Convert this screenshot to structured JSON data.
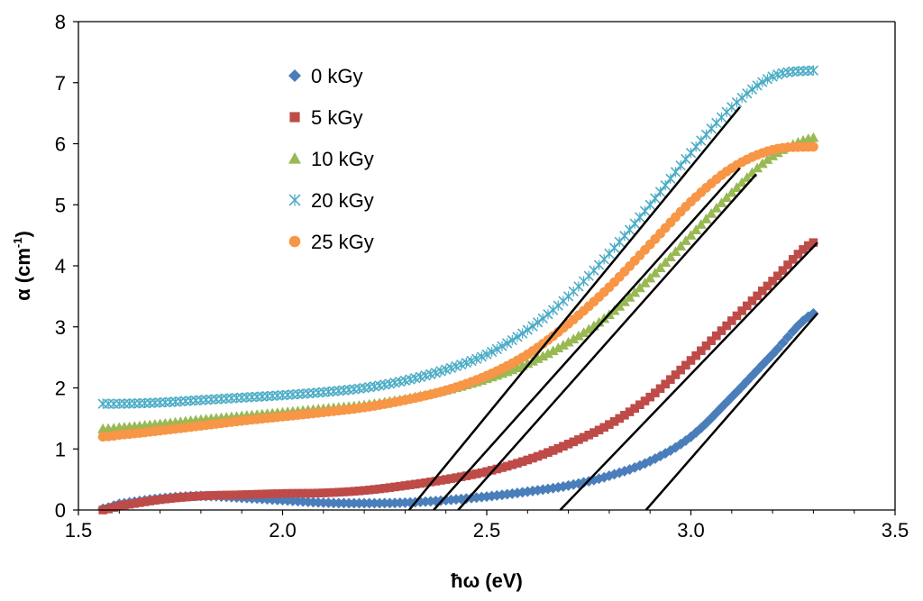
{
  "chart_data": {
    "type": "scatter",
    "title": "",
    "xlabel": "ħω (eV)",
    "ylabel": {
      "base": "α (cm",
      "sup": "-1",
      "tail": ")"
    },
    "xlim": [
      1.5,
      3.5
    ],
    "ylim": [
      0,
      8
    ],
    "xticks": [
      1.5,
      2.0,
      2.5,
      3.0,
      3.5
    ],
    "xtick_labels": [
      "1.5",
      "2.0",
      "2.5",
      "3.0",
      "3.5"
    ],
    "yticks": [
      0,
      1,
      2,
      3,
      4,
      5,
      6,
      7,
      8
    ],
    "ytick_labels": [
      "0",
      "1",
      "2",
      "3",
      "4",
      "5",
      "6",
      "7",
      "8"
    ],
    "grid": false,
    "legend_position": "upper-left-inside",
    "series": [
      {
        "name": "0 kGy",
        "marker": "diamond",
        "color": "#4A7EBB",
        "x": [
          1.56,
          1.6,
          1.7,
          1.8,
          1.9,
          2.0,
          2.1,
          2.2,
          2.3,
          2.4,
          2.5,
          2.6,
          2.7,
          2.8,
          2.9,
          3.0,
          3.1,
          3.2,
          3.3
        ],
        "y": [
          0.02,
          0.1,
          0.19,
          0.23,
          0.2,
          0.16,
          0.12,
          0.11,
          0.12,
          0.16,
          0.22,
          0.3,
          0.4,
          0.56,
          0.8,
          1.2,
          1.85,
          2.55,
          3.22
        ]
      },
      {
        "name": "5 kGy",
        "marker": "square",
        "color": "#BE4B48",
        "x": [
          1.56,
          1.6,
          1.7,
          1.8,
          1.9,
          2.0,
          2.1,
          2.2,
          2.3,
          2.4,
          2.5,
          2.6,
          2.7,
          2.8,
          2.9,
          3.0,
          3.1,
          3.2,
          3.3
        ],
        "y": [
          0.0,
          0.07,
          0.17,
          0.23,
          0.25,
          0.27,
          0.28,
          0.32,
          0.4,
          0.5,
          0.63,
          0.82,
          1.08,
          1.4,
          1.85,
          2.45,
          3.1,
          3.75,
          4.38
        ]
      },
      {
        "name": "10 kGy",
        "marker": "triangle",
        "color": "#98B954",
        "x": [
          1.56,
          1.6,
          1.7,
          1.8,
          1.9,
          2.0,
          2.1,
          2.2,
          2.3,
          2.4,
          2.5,
          2.6,
          2.7,
          2.8,
          2.9,
          3.0,
          3.1,
          3.2,
          3.3
        ],
        "y": [
          1.33,
          1.35,
          1.41,
          1.48,
          1.54,
          1.6,
          1.66,
          1.72,
          1.82,
          1.96,
          2.15,
          2.4,
          2.75,
          3.2,
          3.8,
          4.5,
          5.2,
          5.8,
          6.1
        ]
      },
      {
        "name": "20 kGy",
        "marker": "cross",
        "color": "#4BACC6",
        "x": [
          1.56,
          1.6,
          1.7,
          1.8,
          1.9,
          2.0,
          2.1,
          2.2,
          2.3,
          2.4,
          2.5,
          2.6,
          2.7,
          2.8,
          2.9,
          3.0,
          3.1,
          3.2,
          3.3
        ],
        "y": [
          1.74,
          1.74,
          1.76,
          1.8,
          1.84,
          1.88,
          1.93,
          2.0,
          2.12,
          2.3,
          2.55,
          2.95,
          3.5,
          4.2,
          5.0,
          5.85,
          6.6,
          7.1,
          7.2
        ]
      },
      {
        "name": "25 kGy",
        "marker": "circle",
        "color": "#F79646",
        "x": [
          1.56,
          1.6,
          1.7,
          1.8,
          1.9,
          2.0,
          2.1,
          2.2,
          2.3,
          2.4,
          2.5,
          2.6,
          2.7,
          2.8,
          2.9,
          3.0,
          3.1,
          3.2,
          3.3
        ],
        "y": [
          1.2,
          1.23,
          1.3,
          1.38,
          1.46,
          1.53,
          1.6,
          1.68,
          1.8,
          1.96,
          2.2,
          2.55,
          3.05,
          3.65,
          4.35,
          5.05,
          5.6,
          5.9,
          5.95
        ]
      }
    ],
    "fit_lines": [
      {
        "color": "#000000",
        "x": [
          2.31,
          3.12
        ],
        "y": [
          0,
          6.6
        ]
      },
      {
        "color": "#000000",
        "x": [
          2.37,
          3.12
        ],
        "y": [
          0,
          5.6
        ]
      },
      {
        "color": "#000000",
        "x": [
          2.43,
          3.16
        ],
        "y": [
          0,
          5.5
        ]
      },
      {
        "color": "#000000",
        "x": [
          2.68,
          3.31
        ],
        "y": [
          0,
          4.38
        ]
      },
      {
        "color": "#000000",
        "x": [
          2.89,
          3.31
        ],
        "y": [
          0,
          3.22
        ]
      }
    ]
  }
}
